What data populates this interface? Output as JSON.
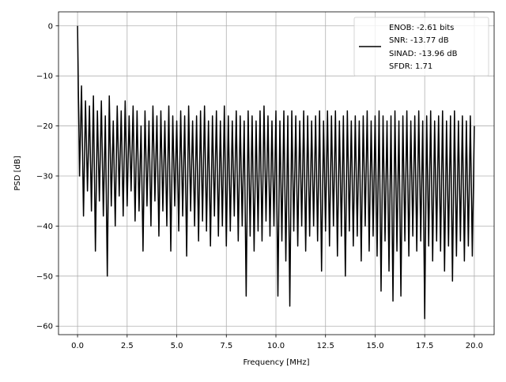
{
  "chart_data": {
    "type": "line",
    "title": "",
    "xlabel": "Frequency [MHz]",
    "ylabel": "PSD [dB]",
    "xlim": [
      -0.96,
      21.0
    ],
    "ylim": [
      -61.7,
      2.8
    ],
    "grid": true,
    "x_ticks": [
      "0.0",
      "2.5",
      "5.0",
      "7.5",
      "10.0",
      "12.5",
      "15.0",
      "17.5",
      "20.0"
    ],
    "x_tick_values": [
      0,
      2.5,
      5,
      7.5,
      10,
      12.5,
      15,
      17.5,
      20
    ],
    "y_ticks": [
      "0",
      "−10",
      "−20",
      "−30",
      "−40",
      "−50",
      "−60"
    ],
    "y_tick_values": [
      0,
      -10,
      -20,
      -30,
      -40,
      -50,
      -60
    ],
    "legend": {
      "placement": "upper-right",
      "lines": [
        "ENOB: -2.61 bits",
        "SNR: -13.77 dB",
        "SINAD: -13.96 dB",
        "SFDR: 1.71"
      ]
    },
    "series": [
      {
        "color": "#000000",
        "x_start": 0,
        "x_step": 0.1,
        "values": [
          0,
          -30,
          -12,
          -38,
          -15,
          -33,
          -16,
          -37,
          -14,
          -45,
          -17,
          -35,
          -15,
          -38,
          -18,
          -50,
          -14,
          -36,
          -19,
          -40,
          -16,
          -34,
          -17,
          -38,
          -15,
          -36,
          -18,
          -33,
          -16,
          -39,
          -17,
          -37,
          -20,
          -45,
          -17,
          -36,
          -19,
          -40,
          -16,
          -35,
          -18,
          -42,
          -17,
          -37,
          -19,
          -40,
          -16,
          -45,
          -18,
          -36,
          -19,
          -41,
          -17,
          -38,
          -18,
          -46,
          -16,
          -37,
          -19,
          -40,
          -18,
          -43,
          -17,
          -39,
          -16,
          -41,
          -19,
          -44,
          -18,
          -38,
          -17,
          -42,
          -19,
          -40,
          -16,
          -44,
          -18,
          -41,
          -19,
          -38,
          -17,
          -43,
          -18,
          -40,
          -19,
          -54,
          -17,
          -42,
          -18,
          -45,
          -19,
          -41,
          -17,
          -43,
          -16,
          -39,
          -18,
          -42,
          -19,
          -40,
          -17,
          -54,
          -19,
          -43,
          -17,
          -47,
          -18,
          -56,
          -17,
          -41,
          -18,
          -44,
          -19,
          -40,
          -17,
          -45,
          -18,
          -42,
          -19,
          -40,
          -18,
          -43,
          -17,
          -49,
          -19,
          -41,
          -17,
          -44,
          -18,
          -40,
          -17,
          -46,
          -19,
          -42,
          -18,
          -50,
          -17,
          -41,
          -19,
          -44,
          -18,
          -42,
          -19,
          -47,
          -18,
          -40,
          -17,
          -45,
          -19,
          -42,
          -18,
          -46,
          -17,
          -53,
          -18,
          -43,
          -19,
          -49,
          -18,
          -55,
          -17,
          -45,
          -19,
          -54,
          -18,
          -43,
          -17,
          -46,
          -19,
          -42,
          -18,
          -45,
          -17,
          -43,
          -19,
          -58.5,
          -18,
          -44,
          -17,
          -47,
          -19,
          -43,
          -18,
          -45,
          -17,
          -49,
          -19,
          -44,
          -18,
          -51,
          -17,
          -46,
          -19,
          -43,
          -18,
          -47,
          -19,
          -44,
          -18,
          -46,
          -20
        ]
      }
    ]
  }
}
